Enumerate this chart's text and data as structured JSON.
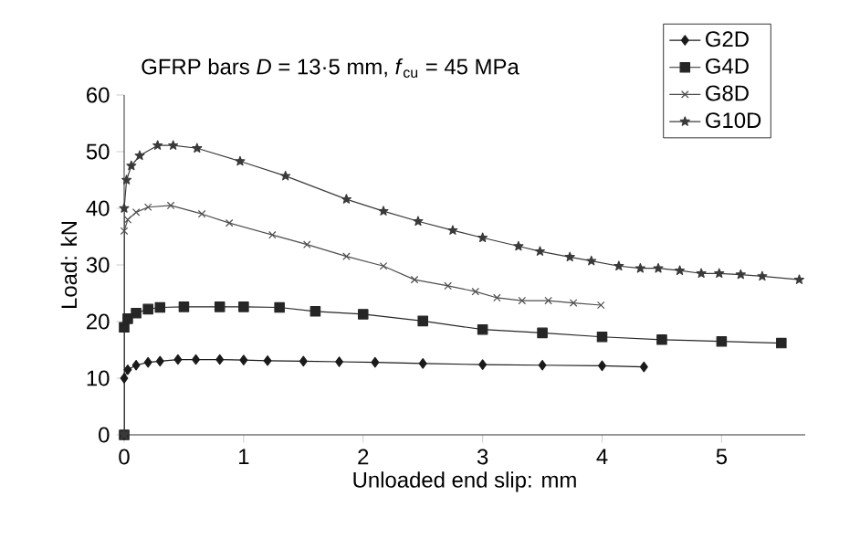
{
  "chart_data": {
    "type": "line",
    "title": "GFRP bars *D* = 13·5 mm, *f*$_{cu}$ = 45 MPa",
    "xlabel": "Unloaded end slip: mm",
    "ylabel": "Load: kN",
    "xlim": [
      0,
      5.7
    ],
    "ylim": [
      0,
      60
    ],
    "xticks": [
      0,
      1,
      2,
      3,
      4,
      5
    ],
    "yticks": [
      0,
      10,
      20,
      30,
      40,
      50,
      60
    ],
    "legend": "top right",
    "line_style": "solid",
    "series": [
      {
        "name": "G2D",
        "color": "#1a1a1a",
        "marker": "diamond",
        "x": [
          0,
          0,
          0.03,
          0.1,
          0.2,
          0.3,
          0.45,
          0.6,
          0.8,
          1.0,
          1.2,
          1.5,
          1.8,
          2.1,
          2.5,
          3.0,
          3.5,
          4.0,
          4.35
        ],
        "values": [
          0,
          10,
          11.5,
          12.3,
          12.8,
          13.0,
          13.3,
          13.3,
          13.3,
          13.2,
          13.1,
          13.0,
          12.9,
          12.8,
          12.6,
          12.4,
          12.3,
          12.2,
          12.0
        ]
      },
      {
        "name": "G4D",
        "color": "#262626",
        "marker": "square",
        "x": [
          0,
          0,
          0.03,
          0.1,
          0.2,
          0.3,
          0.5,
          0.8,
          1.0,
          1.3,
          1.6,
          2.0,
          2.5,
          3.0,
          3.5,
          4.0,
          4.5,
          5.0,
          5.5
        ],
        "values": [
          0,
          19,
          20.5,
          21.5,
          22.2,
          22.5,
          22.6,
          22.6,
          22.6,
          22.5,
          21.8,
          21.3,
          20.1,
          18.6,
          18.0,
          17.3,
          16.8,
          16.5,
          16.2
        ]
      },
      {
        "name": "G8D",
        "color": "#4d4d4d",
        "marker": "cross",
        "x": [
          0,
          0,
          0.03,
          0.1,
          0.2,
          0.39,
          0.65,
          0.88,
          1.24,
          1.53,
          1.86,
          2.17,
          2.43,
          2.71,
          2.94,
          3.12,
          3.33,
          3.55,
          3.76,
          3.99
        ],
        "values": [
          0,
          36,
          38,
          39.3,
          40.2,
          40.5,
          39,
          37.4,
          35.3,
          33.6,
          31.5,
          29.8,
          27.4,
          26.3,
          25.3,
          24.2,
          23.7,
          23.7,
          23.3,
          22.9
        ]
      },
      {
        "name": "G10D",
        "color": "#3a3a3a",
        "marker": "star",
        "x": [
          0,
          0,
          0.02,
          0.06,
          0.13,
          0.28,
          0.41,
          0.61,
          0.97,
          1.35,
          1.86,
          2.17,
          2.46,
          2.75,
          3.0,
          3.3,
          3.48,
          3.73,
          3.91,
          4.14,
          4.32,
          4.47,
          4.65,
          4.83,
          4.98,
          5.16,
          5.34,
          5.65
        ],
        "values": [
          0,
          40,
          45,
          47.5,
          49.3,
          51.1,
          51.1,
          50.6,
          48.3,
          45.7,
          41.6,
          39.5,
          37.7,
          36.1,
          34.8,
          33.3,
          32.4,
          31.4,
          30.7,
          29.8,
          29.4,
          29.4,
          29.0,
          28.5,
          28.5,
          28.3,
          28.0,
          27.4
        ]
      }
    ]
  }
}
